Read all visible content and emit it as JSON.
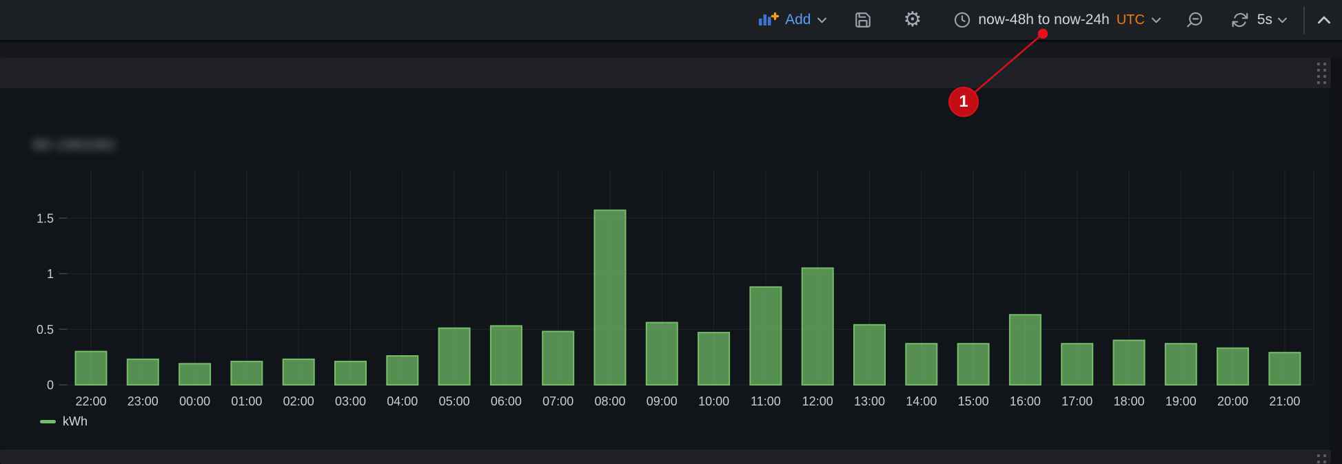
{
  "toolbar": {
    "add_label": "Add",
    "time_range": "now-48h to now-24h",
    "timezone": "UTC",
    "refresh_interval": "5s"
  },
  "panel": {
    "title_redacted_text": "8D-1983382",
    "title_is_blurred": true
  },
  "legend": {
    "label": "kWh"
  },
  "annotation": {
    "label": "1"
  },
  "colors": {
    "bar_green": "#73bf69",
    "accent_blue": "#5b9cf6",
    "utc_orange": "#eb7b18",
    "annotation_red": "#d8101b"
  },
  "chart_data": {
    "type": "bar",
    "title": "(panel title blurred in screenshot)",
    "categories": [
      "22:00",
      "23:00",
      "00:00",
      "01:00",
      "02:00",
      "03:00",
      "04:00",
      "05:00",
      "06:00",
      "07:00",
      "08:00",
      "09:00",
      "10:00",
      "11:00",
      "12:00",
      "13:00",
      "14:00",
      "15:00",
      "16:00",
      "17:00",
      "18:00",
      "19:00",
      "20:00",
      "21:00"
    ],
    "series": [
      {
        "name": "kWh",
        "color": "#73bf69",
        "values": [
          0.3,
          0.23,
          0.19,
          0.21,
          0.23,
          0.21,
          0.26,
          0.51,
          0.53,
          0.48,
          1.57,
          0.56,
          0.47,
          0.88,
          1.05,
          0.54,
          0.37,
          0.37,
          0.63,
          0.37,
          0.4,
          0.37,
          0.33,
          0.29
        ]
      }
    ],
    "xlabel": "",
    "ylabel": "",
    "ylim": [
      0,
      1.9
    ],
    "y_ticks": [
      0,
      0.5,
      1,
      1.5
    ],
    "grid": true,
    "legend_position": "bottom-left"
  }
}
